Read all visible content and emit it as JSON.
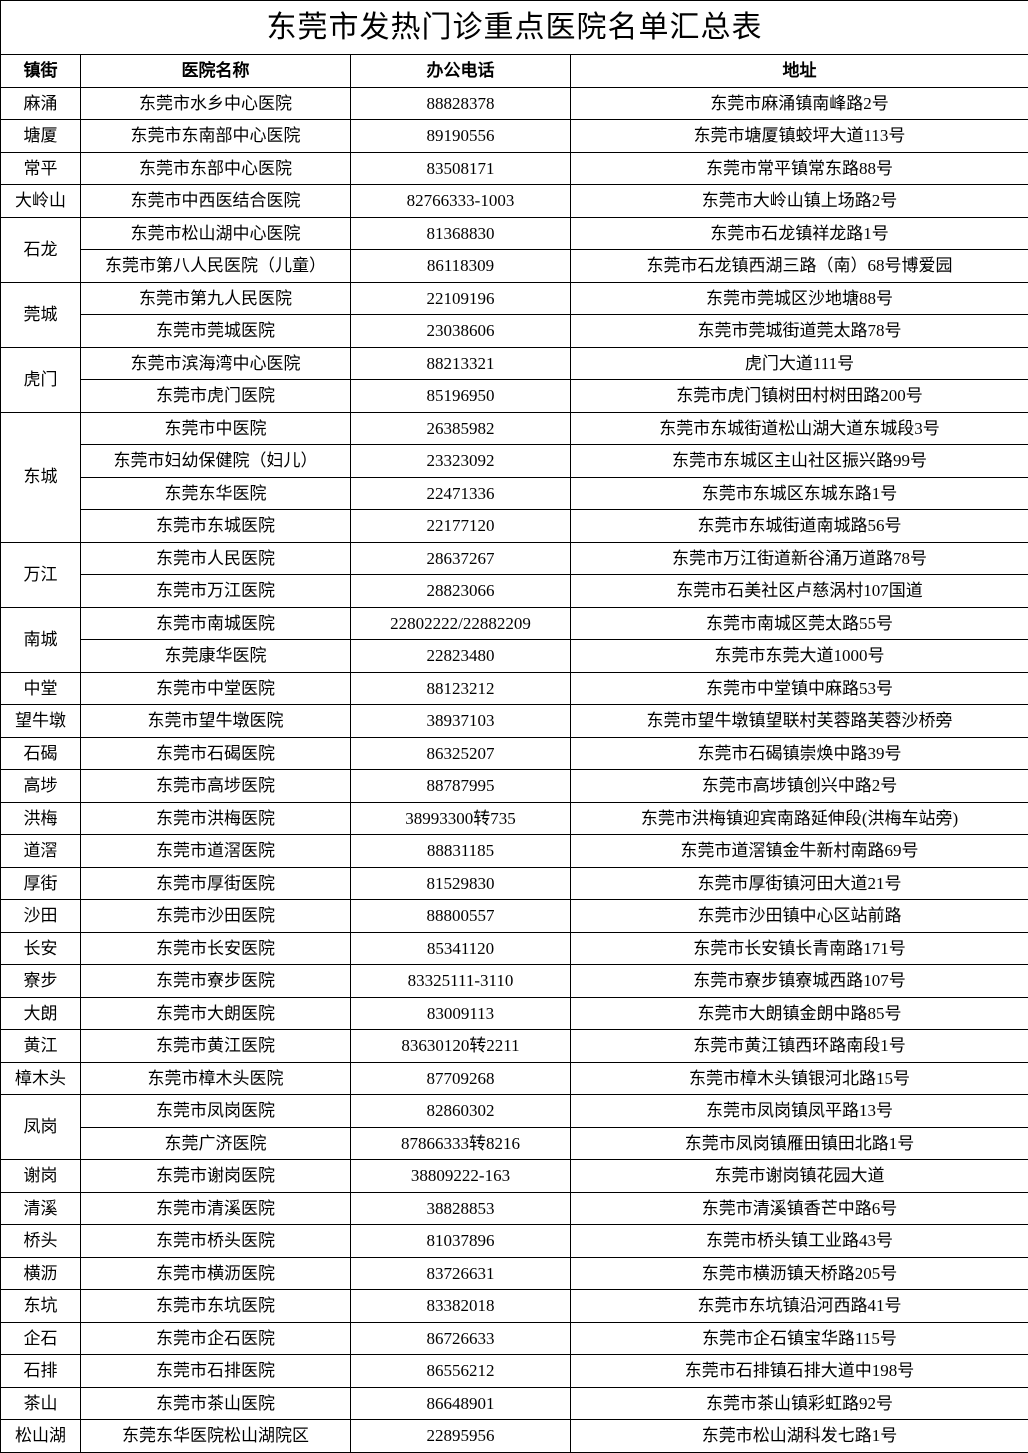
{
  "title": "东莞市发热门诊重点医院名单汇总表",
  "headers": {
    "town": "镇街",
    "hospital": "医院名称",
    "phone": "办公电话",
    "address": "地址"
  },
  "groups": [
    {
      "town": "麻涌",
      "rows": [
        {
          "hospital": "东莞市水乡中心医院",
          "phone": "88828378",
          "address": "东莞市麻涌镇南峰路2号"
        }
      ]
    },
    {
      "town": "塘厦",
      "rows": [
        {
          "hospital": "东莞市东南部中心医院",
          "phone": "89190556",
          "address": "东莞市塘厦镇蛟坪大道113号"
        }
      ]
    },
    {
      "town": "常平",
      "rows": [
        {
          "hospital": "东莞市东部中心医院",
          "phone": "83508171",
          "address": "东莞市常平镇常东路88号"
        }
      ]
    },
    {
      "town": "大岭山",
      "rows": [
        {
          "hospital": "东莞市中西医结合医院",
          "phone": "82766333-1003",
          "address": "东莞市大岭山镇上场路2号"
        }
      ]
    },
    {
      "town": "石龙",
      "rows": [
        {
          "hospital": "东莞市松山湖中心医院",
          "phone": "81368830",
          "address": "东莞市石龙镇祥龙路1号"
        },
        {
          "hospital": "东莞市第八人民医院（儿童）",
          "phone": "86118309",
          "address": "东莞市石龙镇西湖三路（南）68号博爱园"
        }
      ]
    },
    {
      "town": "莞城",
      "rows": [
        {
          "hospital": "东莞市第九人民医院",
          "phone": "22109196",
          "address": "东莞市莞城区沙地塘88号"
        },
        {
          "hospital": "东莞市莞城医院",
          "phone": "23038606",
          "address": "东莞市莞城街道莞太路78号"
        }
      ]
    },
    {
      "town": "虎门",
      "rows": [
        {
          "hospital": "东莞市滨海湾中心医院",
          "phone": "88213321",
          "address": "虎门大道111号"
        },
        {
          "hospital": "东莞市虎门医院",
          "phone": "85196950",
          "address": "东莞市虎门镇树田村树田路200号"
        }
      ]
    },
    {
      "town": "东城",
      "rows": [
        {
          "hospital": "东莞市中医院",
          "phone": "26385982",
          "address": "东莞市东城街道松山湖大道东城段3号"
        },
        {
          "hospital": "东莞市妇幼保健院（妇儿）",
          "phone": "23323092",
          "address": "东莞市东城区主山社区振兴路99号"
        },
        {
          "hospital": "东莞东华医院",
          "phone": "22471336",
          "address": "东莞市东城区东城东路1号"
        },
        {
          "hospital": "东莞市东城医院",
          "phone": "22177120",
          "address": "东莞市东城街道南城路56号"
        }
      ]
    },
    {
      "town": "万江",
      "rows": [
        {
          "hospital": "东莞市人民医院",
          "phone": "28637267",
          "address": "东莞市万江街道新谷涌万道路78号"
        },
        {
          "hospital": "东莞市万江医院",
          "phone": "28823066",
          "address": "东莞市石美社区卢慈涡村107国道"
        }
      ]
    },
    {
      "town": "南城",
      "rows": [
        {
          "hospital": "东莞市南城医院",
          "phone": "22802222/22882209",
          "address": "东莞市南城区莞太路55号"
        },
        {
          "hospital": "东莞康华医院",
          "phone": "22823480",
          "address": "东莞市东莞大道1000号"
        }
      ]
    },
    {
      "town": "中堂",
      "rows": [
        {
          "hospital": "东莞市中堂医院",
          "phone": "88123212",
          "address": "东莞市中堂镇中麻路53号"
        }
      ]
    },
    {
      "town": "望牛墩",
      "rows": [
        {
          "hospital": "东莞市望牛墩医院",
          "phone": "38937103",
          "address": "东莞市望牛墩镇望联村芙蓉路芙蓉沙桥旁"
        }
      ]
    },
    {
      "town": "石碣",
      "rows": [
        {
          "hospital": "东莞市石碣医院",
          "phone": "86325207",
          "address": "东莞市石碣镇崇焕中路39号"
        }
      ]
    },
    {
      "town": "高埗",
      "rows": [
        {
          "hospital": "东莞市高埗医院",
          "phone": "88787995",
          "address": "东莞市高埗镇创兴中路2号"
        }
      ]
    },
    {
      "town": "洪梅",
      "rows": [
        {
          "hospital": "东莞市洪梅医院",
          "phone": "38993300转735",
          "address": "东莞市洪梅镇迎宾南路延伸段(洪梅车站旁)"
        }
      ]
    },
    {
      "town": "道滘",
      "rows": [
        {
          "hospital": "东莞市道滘医院",
          "phone": "88831185",
          "address": "东莞市道滘镇金牛新村南路69号"
        }
      ]
    },
    {
      "town": "厚街",
      "rows": [
        {
          "hospital": "东莞市厚街医院",
          "phone": "81529830",
          "address": "东莞市厚街镇河田大道21号"
        }
      ]
    },
    {
      "town": "沙田",
      "rows": [
        {
          "hospital": "东莞市沙田医院",
          "phone": "88800557",
          "address": "东莞市沙田镇中心区站前路"
        }
      ]
    },
    {
      "town": "长安",
      "rows": [
        {
          "hospital": "东莞市长安医院",
          "phone": "85341120",
          "address": "东莞市长安镇长青南路171号"
        }
      ]
    },
    {
      "town": "寮步",
      "rows": [
        {
          "hospital": "东莞市寮步医院",
          "phone": "83325111-3110",
          "address": "东莞市寮步镇寮城西路107号"
        }
      ]
    },
    {
      "town": "大朗",
      "rows": [
        {
          "hospital": "东莞市大朗医院",
          "phone": "83009113",
          "address": "东莞市大朗镇金朗中路85号"
        }
      ]
    },
    {
      "town": "黄江",
      "rows": [
        {
          "hospital": "东莞市黄江医院",
          "phone": "83630120转2211",
          "address": "东莞市黄江镇西环路南段1号"
        }
      ]
    },
    {
      "town": "樟木头",
      "rows": [
        {
          "hospital": "东莞市樟木头医院",
          "phone": "87709268",
          "address": "东莞市樟木头镇银河北路15号"
        }
      ]
    },
    {
      "town": "凤岗",
      "rows": [
        {
          "hospital": "东莞市凤岗医院",
          "phone": "82860302",
          "address": "东莞市凤岗镇凤平路13号"
        },
        {
          "hospital": "东莞广济医院",
          "phone": "87866333转8216",
          "address": "东莞市凤岗镇雁田镇田北路1号"
        }
      ]
    },
    {
      "town": "谢岗",
      "rows": [
        {
          "hospital": "东莞市谢岗医院",
          "phone": "38809222-163",
          "address": "东莞市谢岗镇花园大道"
        }
      ]
    },
    {
      "town": "清溪",
      "rows": [
        {
          "hospital": "东莞市清溪医院",
          "phone": "38828853",
          "address": "东莞市清溪镇香芒中路6号"
        }
      ]
    },
    {
      "town": "桥头",
      "rows": [
        {
          "hospital": "东莞市桥头医院",
          "phone": "81037896",
          "address": "东莞市桥头镇工业路43号"
        }
      ]
    },
    {
      "town": "横沥",
      "rows": [
        {
          "hospital": "东莞市横沥医院",
          "phone": "83726631",
          "address": "东莞市横沥镇天桥路205号"
        }
      ]
    },
    {
      "town": "东坑",
      "rows": [
        {
          "hospital": "东莞市东坑医院",
          "phone": "83382018",
          "address": "东莞市东坑镇沿河西路41号"
        }
      ]
    },
    {
      "town": "企石",
      "rows": [
        {
          "hospital": "东莞市企石医院",
          "phone": "86726633",
          "address": "东莞市企石镇宝华路115号"
        }
      ]
    },
    {
      "town": "石排",
      "rows": [
        {
          "hospital": "东莞市石排医院",
          "phone": "86556212",
          "address": "东莞市石排镇石排大道中198号"
        }
      ]
    },
    {
      "town": "茶山",
      "rows": [
        {
          "hospital": "东莞市茶山医院",
          "phone": "86648901",
          "address": "东莞市茶山镇彩虹路92号"
        }
      ]
    },
    {
      "town": "松山湖",
      "rows": [
        {
          "hospital": "东莞东华医院松山湖院区",
          "phone": "22895956",
          "address": "东莞市松山湖科发七路1号"
        }
      ]
    }
  ]
}
